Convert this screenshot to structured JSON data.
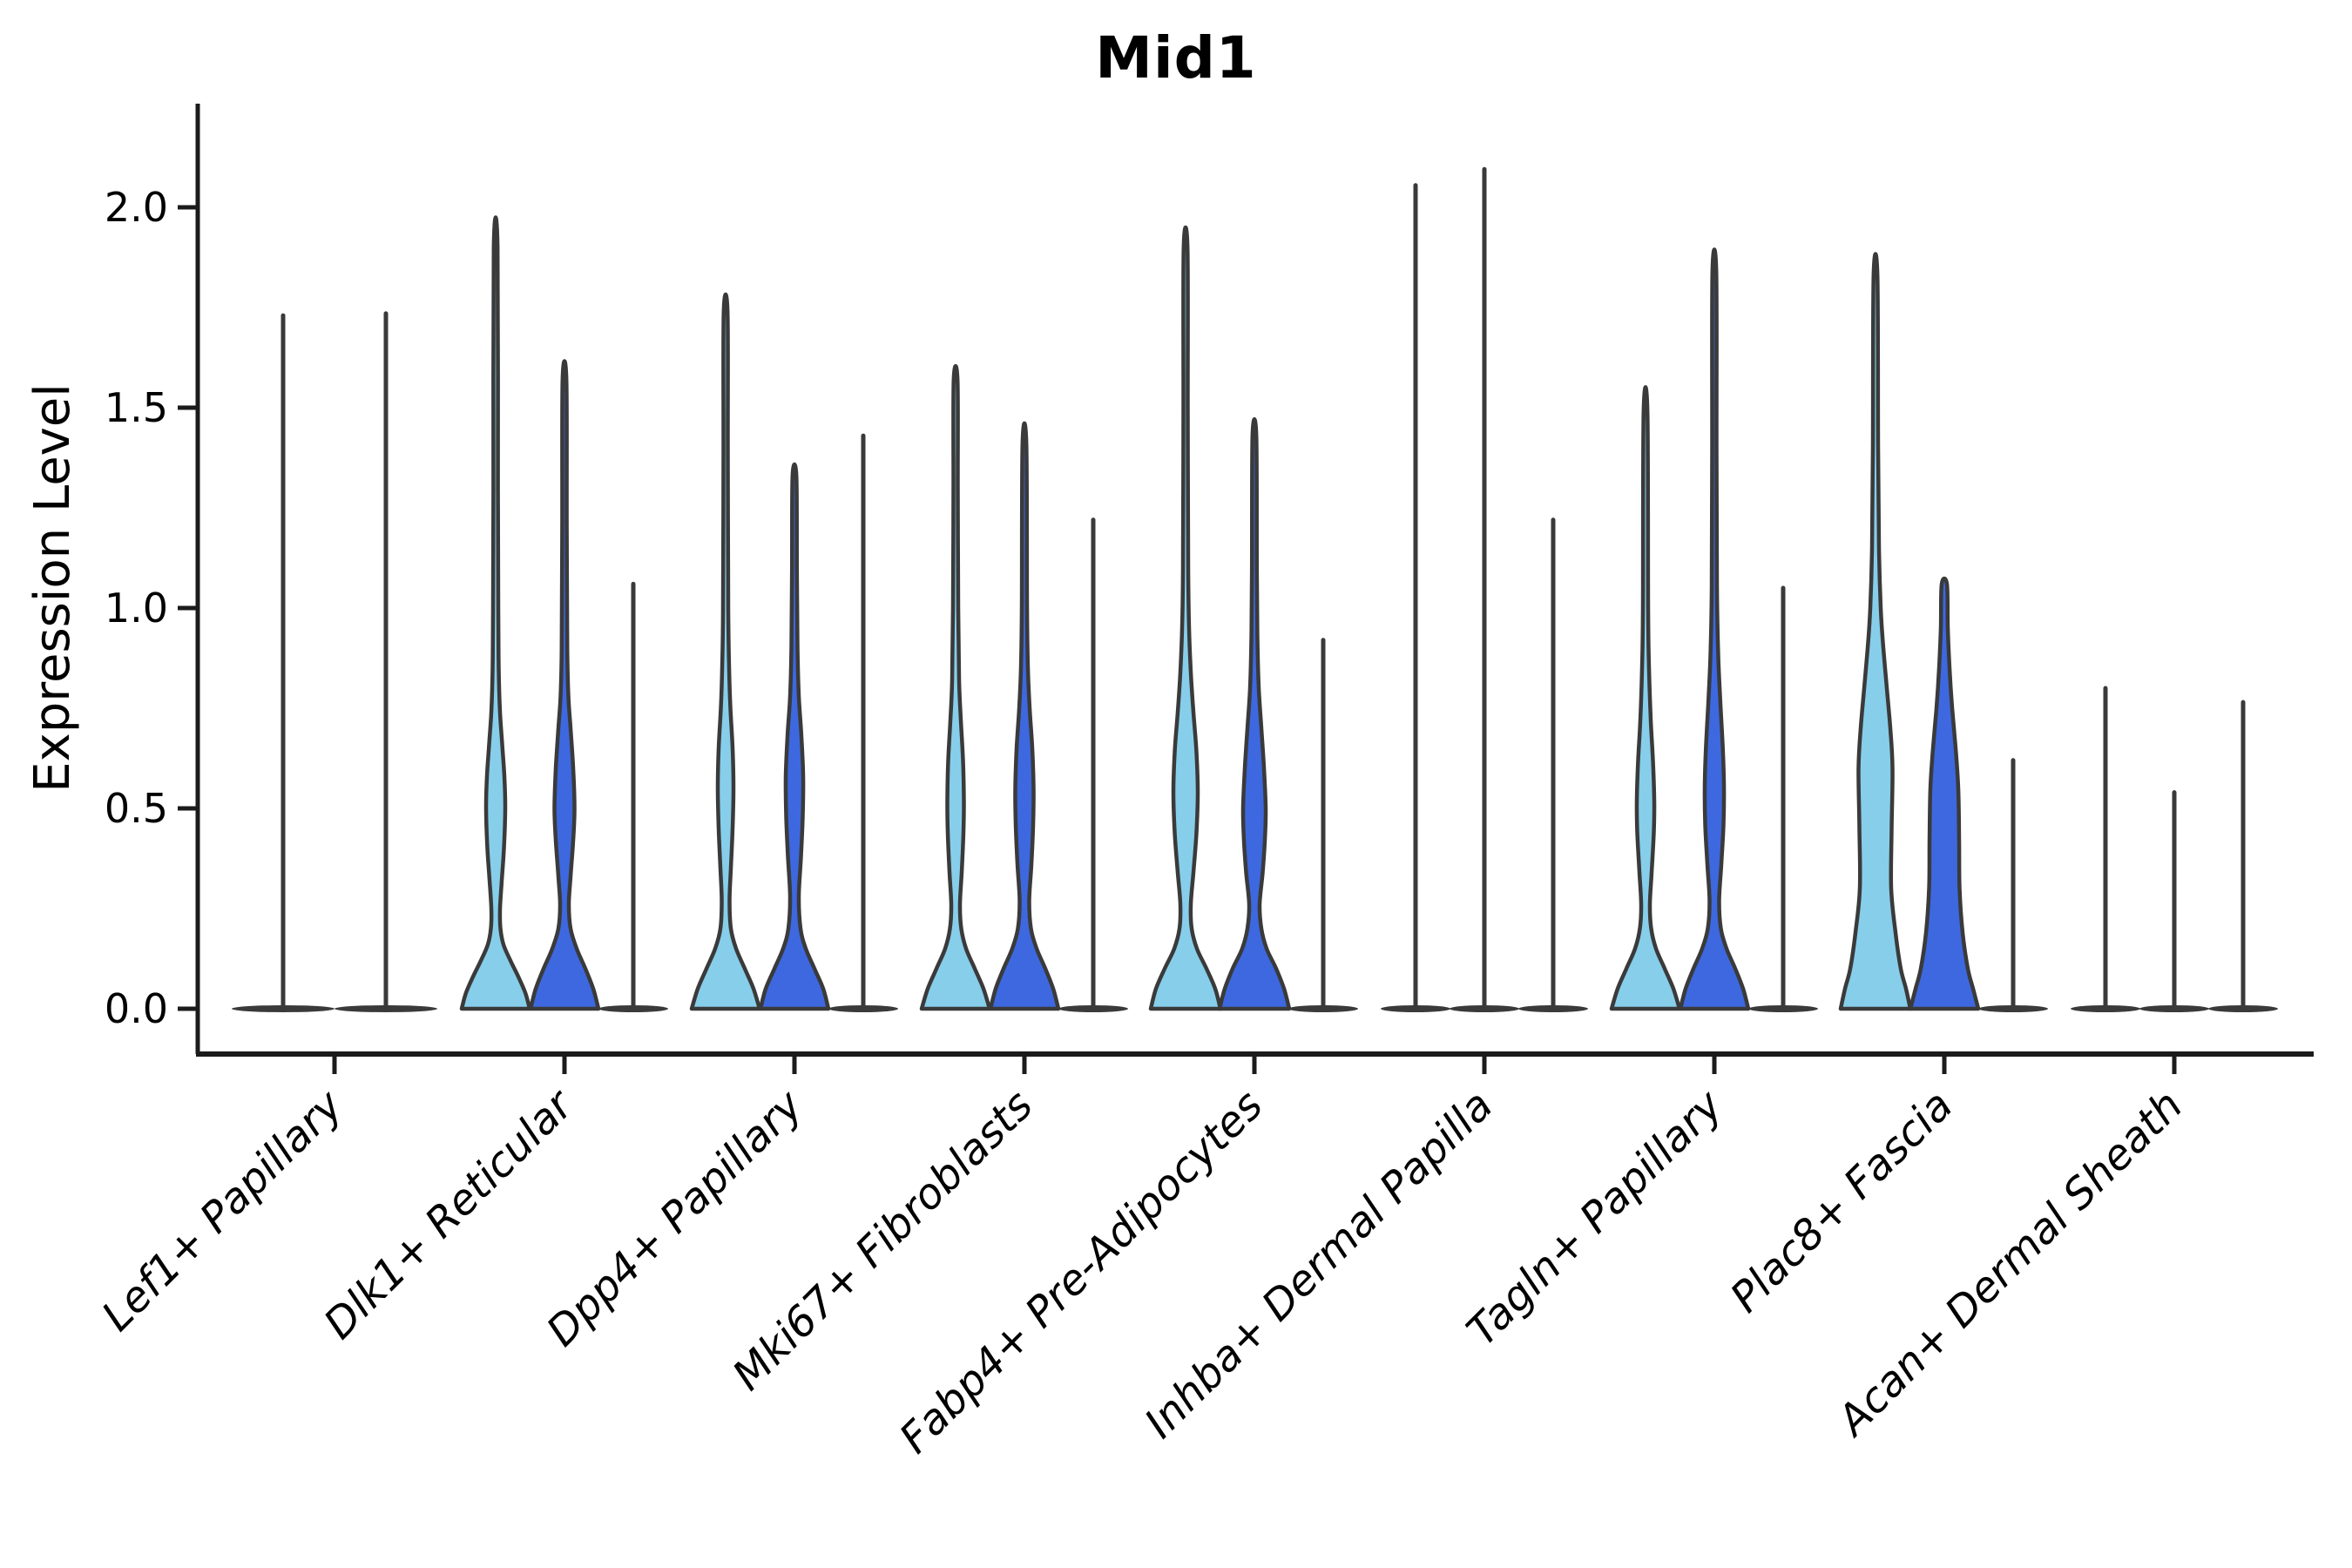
{
  "title": "Mid1",
  "y_axis_label": "Expression Level",
  "chart_data": {
    "type": "violin",
    "title": "Mid1",
    "xlabel": "",
    "ylabel": "Expression Level",
    "ylim": [
      -0.113,
      2.26
    ],
    "yticks": [
      0.0,
      0.5,
      1.0,
      1.5,
      2.0
    ],
    "ytick_labels": [
      "0.0",
      "0.5",
      "1.0",
      "1.5",
      "2.0"
    ],
    "grid": false,
    "legend": "none",
    "categories": [
      "Lef1+ Papillary",
      "Dlk1+ Reticular",
      "Dpp4+ Papillary",
      "Mki67+ Fibroblasts",
      "Fabp4+ Pre-Adipocytes",
      "Inhba+ Dermal Papilla",
      "Tagln+ Papillary",
      "Plac8+ Fascia",
      "Acan+ Dermal Sheath"
    ],
    "colors": {
      "light_blue": "#87CEEB",
      "dark_blue": "#3D68DF",
      "violin_edge": "#3a3a3a",
      "axis": "#1b1b1b",
      "text": "#000000"
    },
    "pixel": {
      "y_zero": 1158,
      "y_scale": 460,
      "axis_left": 227,
      "axis_top": 119,
      "axis_bottom": 1210,
      "axis_right": 2656,
      "group_start": 384,
      "group_step": 264,
      "ytick_len": 23,
      "xtick_len": 23,
      "violin_stroke": 4.5,
      "line_stroke": 5,
      "lens_ry": 4
    },
    "groups": [
      {
        "label": "Lef1+ Papillary",
        "center": 384,
        "violins": [
          {
            "kind": "line",
            "offset": -59,
            "max": 1.73,
            "lens_hw": 59
          },
          {
            "kind": "line",
            "offset": 59,
            "max": 1.735,
            "lens_hw": 59
          }
        ]
      },
      {
        "label": "Dlk1+ Reticular",
        "center": 648,
        "violins": [
          {
            "kind": "filled",
            "offset": -79,
            "color": "light_blue",
            "max": 1.9,
            "profile": [
              [
                0,
                39
              ],
              [
                0.04,
                34
              ],
              [
                0.08,
                26
              ],
              [
                0.12,
                17
              ],
              [
                0.16,
                9
              ],
              [
                0.2,
                5.5
              ],
              [
                0.25,
                5
              ],
              [
                0.32,
                7
              ],
              [
                0.4,
                9.5
              ],
              [
                0.5,
                11
              ],
              [
                0.58,
                10
              ],
              [
                0.66,
                7.5
              ],
              [
                0.74,
                5
              ],
              [
                0.85,
                3.5
              ],
              [
                1.0,
                3
              ],
              [
                1.3,
                2.6
              ],
              [
                1.9,
                2.2
              ]
            ]
          },
          {
            "kind": "filled",
            "offset": 0,
            "color": "dark_blue",
            "max": 1.57,
            "profile": [
              [
                0,
                39
              ],
              [
                0.05,
                33
              ],
              [
                0.1,
                24
              ],
              [
                0.15,
                14
              ],
              [
                0.2,
                7
              ],
              [
                0.26,
                5
              ],
              [
                0.33,
                7
              ],
              [
                0.42,
                10
              ],
              [
                0.5,
                11.5
              ],
              [
                0.6,
                10
              ],
              [
                0.7,
                7
              ],
              [
                0.78,
                4.5
              ],
              [
                0.9,
                3.2
              ],
              [
                1.2,
                2.6
              ],
              [
                1.57,
                2.2
              ]
            ]
          },
          {
            "kind": "line",
            "offset": 79,
            "max": 1.06,
            "lens_hw": 40
          }
        ]
      },
      {
        "label": "Dpp4+ Papillary",
        "center": 912,
        "violins": [
          {
            "kind": "filled",
            "offset": -79,
            "color": "light_blue",
            "max": 1.74,
            "profile": [
              [
                0,
                39
              ],
              [
                0.05,
                32
              ],
              [
                0.1,
                22
              ],
              [
                0.15,
                12
              ],
              [
                0.2,
                6
              ],
              [
                0.27,
                4.5
              ],
              [
                0.35,
                6
              ],
              [
                0.45,
                8
              ],
              [
                0.55,
                9
              ],
              [
                0.65,
                8
              ],
              [
                0.75,
                5.5
              ],
              [
                0.85,
                4
              ],
              [
                1.0,
                3
              ],
              [
                1.4,
                2.5
              ],
              [
                1.74,
                2.2
              ]
            ]
          },
          {
            "kind": "filled",
            "offset": 0,
            "color": "dark_blue",
            "max": 1.33,
            "profile": [
              [
                0,
                39
              ],
              [
                0.05,
                33
              ],
              [
                0.1,
                23
              ],
              [
                0.15,
                13
              ],
              [
                0.2,
                7
              ],
              [
                0.28,
                5
              ],
              [
                0.38,
                7.5
              ],
              [
                0.48,
                9.5
              ],
              [
                0.58,
                10
              ],
              [
                0.68,
                8
              ],
              [
                0.78,
                5
              ],
              [
                0.9,
                3.5
              ],
              [
                1.1,
                2.8
              ],
              [
                1.33,
                2.2
              ]
            ]
          },
          {
            "kind": "line",
            "offset": 79,
            "max": 1.43,
            "lens_hw": 40
          }
        ]
      },
      {
        "label": "Mki67+ Fibroblasts",
        "center": 1176,
        "violins": [
          {
            "kind": "filled",
            "offset": -79,
            "color": "light_blue",
            "max": 1.57,
            "profile": [
              [
                0,
                39
              ],
              [
                0.05,
                32
              ],
              [
                0.1,
                22
              ],
              [
                0.15,
                12
              ],
              [
                0.2,
                6.5
              ],
              [
                0.26,
                5
              ],
              [
                0.34,
                7
              ],
              [
                0.44,
                9
              ],
              [
                0.52,
                9.5
              ],
              [
                0.62,
                8.5
              ],
              [
                0.72,
                6
              ],
              [
                0.82,
                4
              ],
              [
                1.0,
                3
              ],
              [
                1.3,
                2.5
              ],
              [
                1.57,
                2.2
              ]
            ]
          },
          {
            "kind": "filled",
            "offset": 0,
            "color": "dark_blue",
            "max": 1.41,
            "profile": [
              [
                0,
                39
              ],
              [
                0.05,
                33
              ],
              [
                0.1,
                24
              ],
              [
                0.15,
                14
              ],
              [
                0.2,
                7.5
              ],
              [
                0.27,
                5.5
              ],
              [
                0.36,
                8
              ],
              [
                0.46,
                10
              ],
              [
                0.55,
                10.5
              ],
              [
                0.65,
                9
              ],
              [
                0.75,
                6
              ],
              [
                0.85,
                4
              ],
              [
                1.0,
                3
              ],
              [
                1.41,
                2.2
              ]
            ]
          },
          {
            "kind": "line",
            "offset": 79,
            "max": 1.22,
            "lens_hw": 40
          }
        ]
      },
      {
        "label": "Fabp4+ Pre-Adipocytes",
        "center": 1440,
        "violins": [
          {
            "kind": "filled",
            "offset": -79,
            "color": "light_blue",
            "max": 1.9,
            "profile": [
              [
                0,
                40
              ],
              [
                0.05,
                34
              ],
              [
                0.1,
                24
              ],
              [
                0.15,
                13
              ],
              [
                0.2,
                7
              ],
              [
                0.26,
                6
              ],
              [
                0.34,
                9
              ],
              [
                0.44,
                12.5
              ],
              [
                0.54,
                14
              ],
              [
                0.64,
                12.5
              ],
              [
                0.74,
                9
              ],
              [
                0.84,
                6
              ],
              [
                0.95,
                4
              ],
              [
                1.1,
                3
              ],
              [
                1.5,
                2.5
              ],
              [
                1.9,
                2.2
              ]
            ]
          },
          {
            "kind": "filled",
            "offset": 0,
            "color": "dark_blue",
            "max": 1.43,
            "profile": [
              [
                0,
                40
              ],
              [
                0.05,
                34
              ],
              [
                0.1,
                25
              ],
              [
                0.15,
                14
              ],
              [
                0.2,
                8
              ],
              [
                0.26,
                6
              ],
              [
                0.34,
                9.5
              ],
              [
                0.42,
                12
              ],
              [
                0.5,
                13
              ],
              [
                0.6,
                11
              ],
              [
                0.7,
                8
              ],
              [
                0.8,
                5
              ],
              [
                0.92,
                3.5
              ],
              [
                1.1,
                2.8
              ],
              [
                1.43,
                2.2
              ]
            ]
          },
          {
            "kind": "line",
            "offset": 79,
            "max": 0.92,
            "lens_hw": 40
          }
        ]
      },
      {
        "label": "Inhba+ Dermal Papilla",
        "center": 1704,
        "violins": [
          {
            "kind": "line",
            "offset": -79,
            "max": 2.055,
            "lens_hw": 40
          },
          {
            "kind": "line",
            "offset": 0,
            "max": 2.095,
            "lens_hw": 40
          },
          {
            "kind": "line",
            "offset": 79,
            "max": 1.22,
            "lens_hw": 40
          }
        ]
      },
      {
        "label": "Tagln+ Papillary",
        "center": 1968,
        "violins": [
          {
            "kind": "filled",
            "offset": -79,
            "color": "light_blue",
            "max": 1.49,
            "profile": [
              [
                0,
                39
              ],
              [
                0.05,
                32
              ],
              [
                0.1,
                22
              ],
              [
                0.15,
                12
              ],
              [
                0.2,
                6.5
              ],
              [
                0.26,
                5
              ],
              [
                0.34,
                7
              ],
              [
                0.44,
                9.5
              ],
              [
                0.52,
                10
              ],
              [
                0.62,
                8.5
              ],
              [
                0.72,
                6
              ],
              [
                0.85,
                4
              ],
              [
                1.0,
                3
              ],
              [
                1.49,
                2.2
              ]
            ]
          },
          {
            "kind": "filled",
            "offset": 0,
            "color": "dark_blue",
            "max": 1.84,
            "profile": [
              [
                0,
                39
              ],
              [
                0.05,
                33
              ],
              [
                0.1,
                24
              ],
              [
                0.15,
                14
              ],
              [
                0.2,
                7.5
              ],
              [
                0.27,
                5.5
              ],
              [
                0.36,
                8
              ],
              [
                0.46,
                10.5
              ],
              [
                0.56,
                11
              ],
              [
                0.66,
                9.5
              ],
              [
                0.76,
                7
              ],
              [
                0.88,
                4.5
              ],
              [
                1.05,
                3
              ],
              [
                1.4,
                2.5
              ],
              [
                1.84,
                2.2
              ]
            ]
          },
          {
            "kind": "line",
            "offset": 79,
            "max": 1.05,
            "lens_hw": 40
          }
        ]
      },
      {
        "label": "Plac8+ Fascia",
        "center": 2232,
        "violins": [
          {
            "kind": "filled",
            "offset": -79,
            "color": "light_blue",
            "max": 1.83,
            "profile": [
              [
                0,
                40
              ],
              [
                0.05,
                35
              ],
              [
                0.1,
                29
              ],
              [
                0.19,
                23
              ],
              [
                0.3,
                18
              ],
              [
                0.45,
                18.5
              ],
              [
                0.6,
                19.5
              ],
              [
                0.7,
                17
              ],
              [
                0.8,
                13
              ],
              [
                0.9,
                9
              ],
              [
                1.0,
                6
              ],
              [
                1.15,
                4
              ],
              [
                1.4,
                3
              ],
              [
                1.83,
                2.2
              ]
            ]
          },
          {
            "kind": "filled",
            "offset": 0,
            "color": "dark_blue",
            "max": 1.06,
            "profile": [
              [
                0,
                39
              ],
              [
                0.05,
                33
              ],
              [
                0.1,
                27
              ],
              [
                0.19,
                21
              ],
              [
                0.3,
                17.5
              ],
              [
                0.42,
                17
              ],
              [
                0.55,
                16
              ],
              [
                0.65,
                13
              ],
              [
                0.75,
                9
              ],
              [
                0.85,
                6
              ],
              [
                0.95,
                4
              ],
              [
                1.06,
                3
              ]
            ]
          },
          {
            "kind": "line",
            "offset": 79,
            "max": 0.62,
            "lens_hw": 40
          }
        ]
      },
      {
        "label": "Acan+ Dermal Sheath",
        "center": 2496,
        "violins": [
          {
            "kind": "line",
            "offset": -79,
            "max": 0.8,
            "lens_hw": 40
          },
          {
            "kind": "line",
            "offset": 0,
            "max": 0.54,
            "lens_hw": 40
          },
          {
            "kind": "line",
            "offset": 79,
            "max": 0.765,
            "lens_hw": 40
          }
        ]
      }
    ],
    "font_px": {
      "title": 66,
      "ylabel": 56,
      "ytick": 46,
      "xtick": 48
    }
  }
}
